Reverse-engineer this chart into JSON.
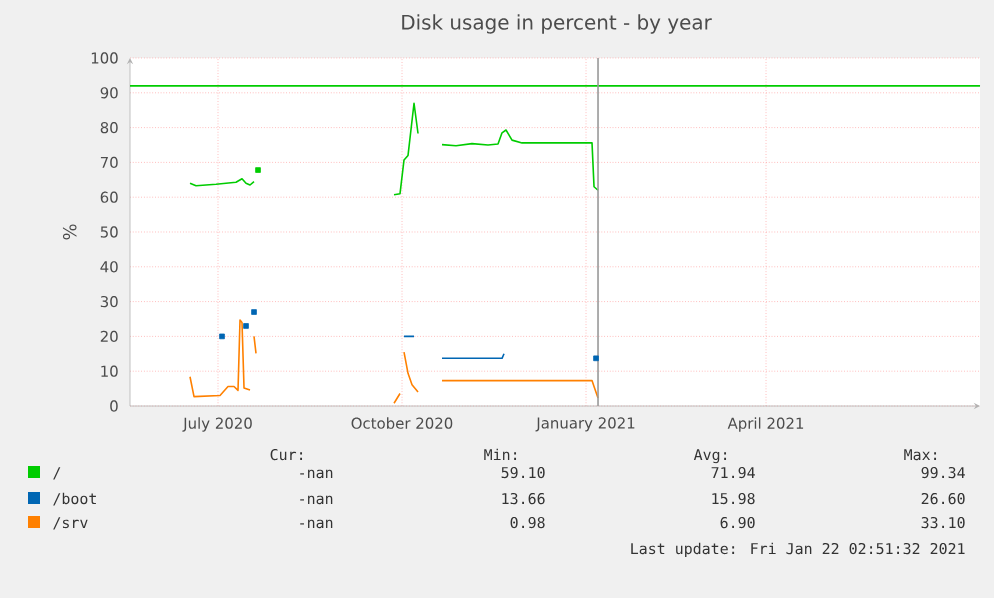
{
  "chart_data": {
    "type": "line",
    "title": "Disk usage in percent - by year",
    "ylabel": "%",
    "xlim": [
      "2020-06-02",
      "2021-08-01"
    ],
    "xticks": [
      {
        "value": "2020-07-16",
        "label": "July 2020"
      },
      {
        "value": "2020-10-16",
        "label": "October 2020"
      },
      {
        "value": "2021-01-16",
        "label": "January 2021"
      },
      {
        "value": "2021-04-16",
        "label": "April 2021"
      }
    ],
    "ylim": [
      0,
      100
    ],
    "yticks": [
      0,
      10,
      20,
      30,
      40,
      50,
      60,
      70,
      80,
      90,
      100
    ],
    "grid": true,
    "legend": "bottom",
    "series": [
      {
        "name": "/",
        "color": "#00cc00",
        "x": [
          "2020-07-02",
          "2020-07-05",
          "2020-07-15",
          "2020-07-25",
          "2020-07-28",
          "2020-07-30",
          "2020-08-01",
          "2020-08-03",
          "2020-09-01",
          "2020-10-12",
          "2020-10-15",
          "2020-10-17",
          "2020-10-19",
          "2020-10-22",
          "2020-10-24",
          "2020-10-30",
          "2020-11-05",
          "2020-11-12",
          "2020-11-20",
          "2020-11-28",
          "2020-12-03",
          "2020-12-05",
          "2020-12-07",
          "2020-12-10",
          "2020-12-15",
          "2021-01-19",
          "2021-01-20",
          "2021-01-22"
        ],
        "values": [
          64.0,
          63.3,
          63.7,
          64.3,
          65.3,
          64.0,
          63.5,
          64.5,
          null,
          60.7,
          61.0,
          70.7,
          72.0,
          87.0,
          78.3,
          null,
          75.1,
          74.8,
          75.4,
          75.0,
          75.3,
          78.5,
          79.3,
          76.4,
          75.6,
          75.6,
          63.0,
          62.0
        ]
      },
      {
        "name": "/boot",
        "color": "#0066b3",
        "x": [
          "2020-10-17",
          "2020-10-22",
          "2020-10-30",
          "2020-11-05",
          "2020-12-05",
          "2020-12-06"
        ],
        "values": [
          20,
          20,
          null,
          13.7,
          13.7,
          15.0
        ]
      },
      {
        "type": "scatter",
        "marker": "square",
        "color": "#00cc00",
        "x": [
          "2020-08-05"
        ],
        "values": [
          67.8
        ]
      },
      {
        "type": "scatter",
        "marker": "square",
        "color": "#0066b3",
        "x": [
          "2020-07-18",
          "2020-07-30",
          "2020-08-03",
          "2021-01-21"
        ],
        "values": [
          20,
          23,
          27,
          13.7
        ]
      },
      {
        "name": "/srv",
        "color": "#ff8000",
        "x": [
          "2020-07-02",
          "2020-07-04",
          "2020-07-17",
          "2020-07-21",
          "2020-07-24",
          "2020-07-26",
          "2020-07-27",
          "2020-07-28",
          "2020-07-29",
          "2020-08-01",
          "2020-08-02",
          "2020-08-03",
          "2020-08-04",
          "2020-09-01",
          "2020-10-12",
          "2020-10-15",
          "2020-10-16",
          "2020-10-17",
          "2020-10-19",
          "2020-10-21",
          "2020-10-24",
          "2020-10-30",
          "2020-11-05",
          "2021-01-19",
          "2021-01-20",
          "2021-01-22"
        ],
        "values": [
          8.4,
          2.7,
          3.0,
          5.6,
          5.6,
          4.5,
          24.7,
          24.0,
          5.2,
          4.6,
          null,
          20.0,
          15.1,
          null,
          0.8,
          3.6,
          null,
          15.5,
          9.4,
          6.1,
          4.0,
          null,
          7.3,
          7.3,
          5.6,
          2.3
        ]
      }
    ],
    "ref_lines": [
      {
        "axis": "y",
        "value": 92,
        "color": "#00cc00"
      },
      {
        "axis": "x",
        "value": "2021-01-22",
        "color": "#999999"
      }
    ],
    "annotations": [
      "Cur:",
      "Min:",
      "Avg:",
      "Max:",
      "-nan",
      "59.10",
      "71.94",
      "99.34",
      "-nan",
      "13.66",
      "15.98",
      "26.60",
      "-nan",
      "0.98",
      "6.90",
      "33.10",
      "Last update: Fri Jan 22 02:51:32 2021"
    ]
  }
}
